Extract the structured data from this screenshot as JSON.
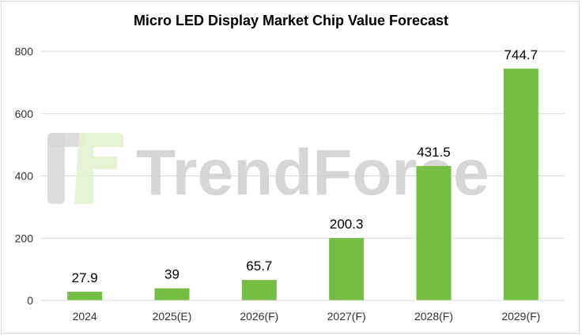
{
  "chart_data": {
    "type": "bar",
    "title": "Micro LED Display Market Chip Value Forecast",
    "categories": [
      "2024",
      "2025(E)",
      "2026(F)",
      "2027(F)",
      "2028(F)",
      "2029(F)"
    ],
    "values": [
      27.9,
      39,
      65.7,
      200.3,
      431.5,
      744.7
    ],
    "data_labels": [
      "27.9",
      "39",
      "65.7",
      "200.3",
      "431.5",
      "744.7"
    ],
    "y_ticks": [
      0,
      200,
      400,
      600,
      800
    ],
    "ylim": [
      0,
      800
    ],
    "grid": true,
    "legend": "none",
    "bar_color": "#76bd44"
  },
  "watermark": {
    "text": "TrendForce"
  }
}
